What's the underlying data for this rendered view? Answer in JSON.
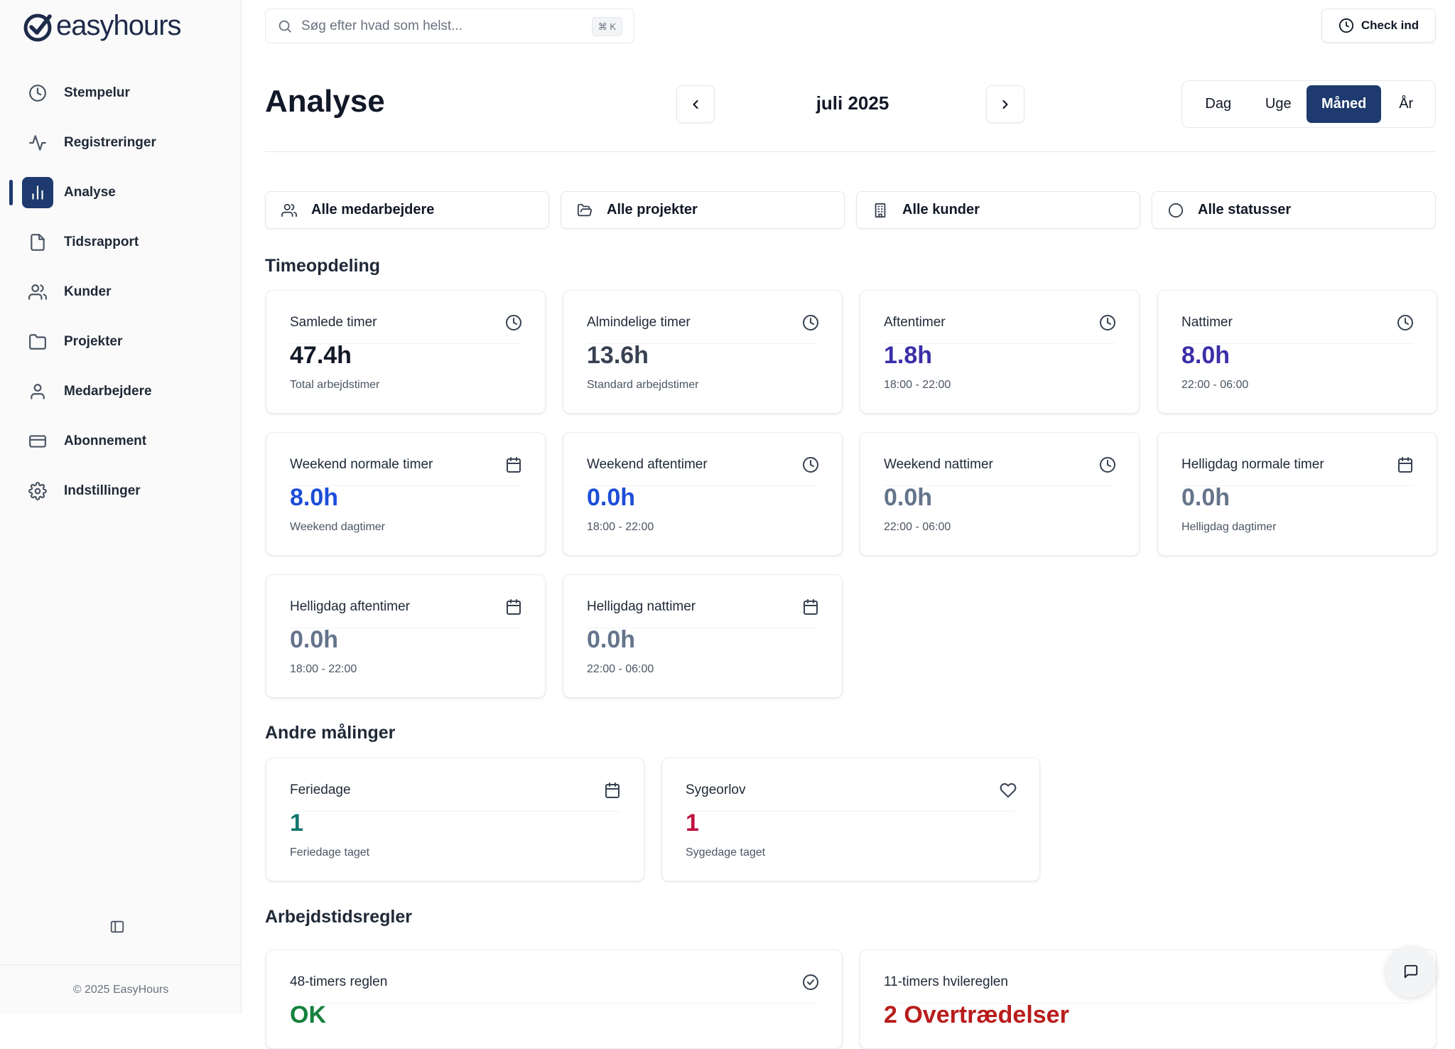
{
  "app": {
    "name": "easyhours",
    "logo_icon": "check-circle-logo",
    "accent": "#1e3a6e",
    "footer": "© 2025 EasyHours"
  },
  "sidebar": {
    "items": [
      {
        "label": "Stempelur",
        "icon": "clock-icon",
        "active": false
      },
      {
        "label": "Registreringer",
        "icon": "activity-icon",
        "active": false
      },
      {
        "label": "Analyse",
        "icon": "bar-chart-icon",
        "active": true
      },
      {
        "label": "Tidsrapport",
        "icon": "file-icon",
        "active": false
      },
      {
        "label": "Kunder",
        "icon": "users-icon",
        "active": false
      },
      {
        "label": "Projekter",
        "icon": "folder-icon",
        "active": false
      },
      {
        "label": "Medarbejdere",
        "icon": "user-icon",
        "active": false
      },
      {
        "label": "Abonnement",
        "icon": "credit-card-icon",
        "active": false
      },
      {
        "label": "Indstillinger",
        "icon": "gear-icon",
        "active": false
      }
    ]
  },
  "topbar": {
    "search_placeholder": "Søg efter hvad som helst...",
    "shortcut": "⌘ K",
    "checkin_label": "Check ind"
  },
  "header": {
    "title": "Analyse",
    "period": "juli 2025",
    "views": [
      {
        "label": "Dag",
        "active": false
      },
      {
        "label": "Uge",
        "active": false
      },
      {
        "label": "Måned",
        "active": true
      },
      {
        "label": "År",
        "active": false
      }
    ]
  },
  "filters": [
    {
      "label": "Alle medarbejdere",
      "icon": "users-icon"
    },
    {
      "label": "Alle projekter",
      "icon": "folder-open-icon"
    },
    {
      "label": "Alle kunder",
      "icon": "building-icon"
    },
    {
      "label": "Alle statusser",
      "icon": "circle-icon"
    }
  ],
  "sections": {
    "timeopdeling": "Timeopdeling",
    "andre": "Andre målinger",
    "regler": "Arbejdstidsregler"
  },
  "timeopdeling_cards": [
    {
      "title": "Samlede timer",
      "value": "47.4h",
      "sub": "Total arbejdstimer",
      "icon": "clock-icon",
      "color": "#111827"
    },
    {
      "title": "Almindelige timer",
      "value": "13.6h",
      "sub": "Standard arbejdstimer",
      "icon": "clock-icon",
      "color": "#374151"
    },
    {
      "title": "Aftentimer",
      "value": "1.8h",
      "sub": "18:00 - 22:00",
      "icon": "clock-icon",
      "color": "#3b2fa8"
    },
    {
      "title": "Nattimer",
      "value": "8.0h",
      "sub": "22:00 - 06:00",
      "icon": "clock-icon",
      "color": "#3b2fa8"
    },
    {
      "title": "Weekend normale timer",
      "value": "8.0h",
      "sub": "Weekend dagtimer",
      "icon": "calendar-icon",
      "color": "#1d4ed8"
    },
    {
      "title": "Weekend aftentimer",
      "value": "0.0h",
      "sub": "18:00 - 22:00",
      "icon": "clock-icon",
      "color": "#1d4ed8"
    },
    {
      "title": "Weekend nattimer",
      "value": "0.0h",
      "sub": "22:00 - 06:00",
      "icon": "clock-icon",
      "color": "#64748b"
    },
    {
      "title": "Helligdag normale timer",
      "value": "0.0h",
      "sub": "Helligdag dagtimer",
      "icon": "calendar-icon",
      "color": "#64748b"
    },
    {
      "title": "Helligdag aftentimer",
      "value": "0.0h",
      "sub": "18:00 - 22:00",
      "icon": "calendar-icon",
      "color": "#64748b"
    },
    {
      "title": "Helligdag nattimer",
      "value": "0.0h",
      "sub": "22:00 - 06:00",
      "icon": "calendar-icon",
      "color": "#64748b"
    }
  ],
  "andre_cards": [
    {
      "title": "Feriedage",
      "value": "1",
      "sub": "Feriedage taget",
      "icon": "calendar-icon",
      "color": "#0f766e"
    },
    {
      "title": "Sygeorlov",
      "value": "1",
      "sub": "Sygedage taget",
      "icon": "heart-icon",
      "color": "#be123c"
    }
  ],
  "regel_cards": [
    {
      "title": "48-timers reglen",
      "value": "OK",
      "icon": "check-circle-icon",
      "color": "#15803d"
    },
    {
      "title": "11-timers hvilereglen",
      "value": "2 Overtrædelser",
      "icon": "",
      "color": "#b91c1c"
    }
  ],
  "chat": {
    "icon": "chat-icon"
  }
}
